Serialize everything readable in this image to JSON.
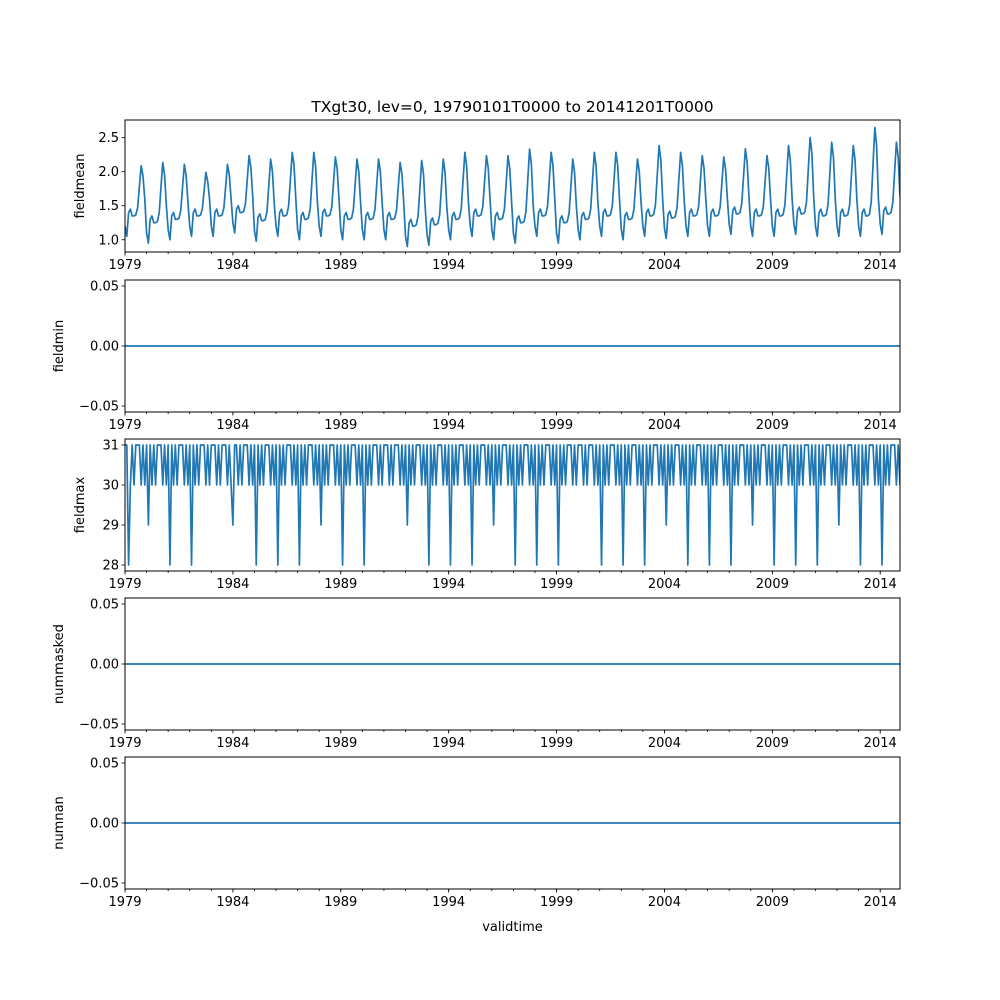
{
  "title": "TXgt30, lev=0, 19790101T0000 to 20141201T0000",
  "xlabel": "validtime",
  "line_color": "#1f77b4",
  "chart_data": {
    "type": "line",
    "x_ticks": [
      "1979",
      "1984",
      "1989",
      "1994",
      "1999",
      "2004",
      "2009",
      "2014"
    ],
    "x_range": [
      "1979-01",
      "2014-12"
    ],
    "panels": [
      {
        "ylabel": "fieldmean",
        "ylim": [
          0.82,
          2.76
        ],
        "yticks": [
          1.0,
          1.5,
          2.0,
          2.5
        ],
        "ytick_labels": [
          "1.0",
          "1.5",
          "2.0",
          "2.5"
        ],
        "series": {
          "peaks": [
            2.1,
            2.15,
            2.12,
            2.0,
            2.12,
            2.25,
            2.2,
            2.3,
            2.3,
            2.23,
            2.2,
            2.2,
            2.15,
            2.18,
            2.2,
            2.3,
            2.25,
            2.25,
            2.35,
            2.3,
            2.2,
            2.3,
            2.3,
            2.2,
            2.4,
            2.3,
            2.25,
            2.23,
            2.35,
            2.25,
            2.4,
            2.52,
            2.45,
            2.4,
            2.67,
            2.45
          ],
          "troughs": [
            1.05,
            0.95,
            1.0,
            1.05,
            1.05,
            1.1,
            0.98,
            1.05,
            1.0,
            1.05,
            1.0,
            1.0,
            1.0,
            0.9,
            0.92,
            1.0,
            1.05,
            1.0,
            0.95,
            1.05,
            0.95,
            1.0,
            1.05,
            1.0,
            1.05,
            1.02,
            1.05,
            1.05,
            1.08,
            1.05,
            1.05,
            1.08,
            1.05,
            1.05,
            1.05,
            1.08
          ]
        }
      },
      {
        "ylabel": "fieldmin",
        "ylim": [
          -0.055,
          0.055
        ],
        "yticks": [
          -0.05,
          0.0,
          0.05
        ],
        "ytick_labels": [
          "−0.05",
          "0.00",
          "0.05"
        ],
        "series": {
          "constant": 0.0
        }
      },
      {
        "ylabel": "fieldmax",
        "ylim": [
          27.85,
          31.15
        ],
        "yticks": [
          28,
          29,
          30,
          31
        ],
        "ytick_labels": [
          "28",
          "29",
          "30",
          "31"
        ],
        "series": {
          "dips": [
            {
              "date": "1979-03",
              "value": 28
            },
            {
              "date": "1980-02",
              "value": 29
            },
            {
              "date": "1981-02",
              "value": 28
            },
            {
              "date": "1982-02",
              "value": 28
            },
            {
              "date": "1984-01",
              "value": 29
            },
            {
              "date": "1985-02",
              "value": 28
            },
            {
              "date": "1986-02",
              "value": 28
            },
            {
              "date": "1987-02",
              "value": 28
            },
            {
              "date": "1988-02",
              "value": 29
            },
            {
              "date": "1989-02",
              "value": 28
            },
            {
              "date": "1990-02",
              "value": 28
            },
            {
              "date": "1992-02",
              "value": 29
            },
            {
              "date": "1993-02",
              "value": 28
            },
            {
              "date": "1994-02",
              "value": 28
            },
            {
              "date": "1995-02",
              "value": 28
            },
            {
              "date": "1996-02",
              "value": 29
            },
            {
              "date": "1997-02",
              "value": 28
            },
            {
              "date": "1998-02",
              "value": 28
            },
            {
              "date": "1999-02",
              "value": 28
            },
            {
              "date": "2001-02",
              "value": 28
            },
            {
              "date": "2002-02",
              "value": 28
            },
            {
              "date": "2003-02",
              "value": 28
            },
            {
              "date": "2004-02",
              "value": 29
            },
            {
              "date": "2005-02",
              "value": 28
            },
            {
              "date": "2006-02",
              "value": 28
            },
            {
              "date": "2007-02",
              "value": 28
            },
            {
              "date": "2008-02",
              "value": 29
            },
            {
              "date": "2009-02",
              "value": 28
            },
            {
              "date": "2010-02",
              "value": 28
            },
            {
              "date": "2011-02",
              "value": 28
            },
            {
              "date": "2012-02",
              "value": 29
            },
            {
              "date": "2013-02",
              "value": 28
            },
            {
              "date": "2014-02",
              "value": 28
            }
          ]
        }
      },
      {
        "ylabel": "nummasked",
        "ylim": [
          -0.055,
          0.055
        ],
        "yticks": [
          -0.05,
          0.0,
          0.05
        ],
        "ytick_labels": [
          "−0.05",
          "0.00",
          "0.05"
        ],
        "series": {
          "constant": 0.0
        }
      },
      {
        "ylabel": "numnan",
        "ylim": [
          -0.055,
          0.055
        ],
        "yticks": [
          -0.05,
          0.0,
          0.05
        ],
        "ytick_labels": [
          "−0.05",
          "0.00",
          "0.05"
        ],
        "series": {
          "constant": 0.0
        }
      }
    ]
  }
}
